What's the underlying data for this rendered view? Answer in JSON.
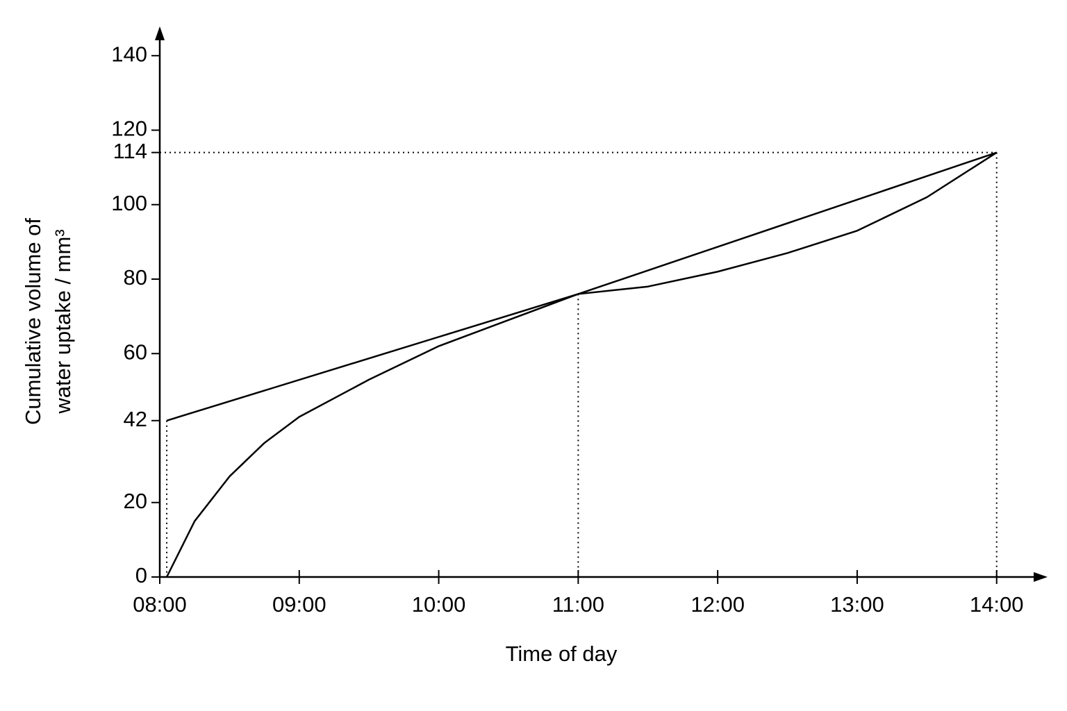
{
  "chart_data": {
    "type": "line",
    "x_label": "Time of day",
    "y_label": [
      "Cumulative volume of",
      "water uptake / mm³"
    ],
    "xlim": [
      8,
      14.35
    ],
    "ylim": [
      0,
      147.5
    ],
    "xticks": [
      {
        "value": 8,
        "label": "08:00"
      },
      {
        "value": 9,
        "label": "09:00"
      },
      {
        "value": 10,
        "label": "10:00"
      },
      {
        "value": 11,
        "label": "11:00"
      },
      {
        "value": 12,
        "label": "12:00"
      },
      {
        "value": 13,
        "label": "13:00"
      },
      {
        "value": 14,
        "label": "14:00"
      }
    ],
    "yticks": [
      0,
      20,
      42,
      60,
      80,
      100,
      114,
      120,
      140
    ],
    "grid": false,
    "series": [
      {
        "color": "#000000",
        "x": [
          8.05,
          8.25,
          8.5,
          8.75,
          9,
          9.5,
          10,
          10.5,
          11,
          11.5,
          12,
          12.5,
          13,
          13.5,
          14
        ],
        "values": [
          0,
          15,
          27,
          36,
          43,
          53,
          62,
          69,
          76,
          78,
          82,
          87,
          93,
          102,
          114
        ]
      },
      {
        "color": "#000000",
        "x": [
          8.05,
          11,
          14
        ],
        "values": [
          42,
          76,
          114
        ]
      }
    ]
  }
}
